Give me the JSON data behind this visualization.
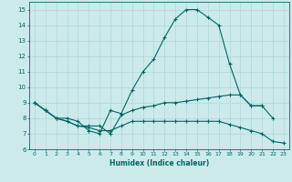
{
  "xlabel": "Humidex (Indice chaleur)",
  "background_color": "#cceaea",
  "grid_color": "#add8d8",
  "line_color": "#006666",
  "xlim": [
    -0.5,
    23.5
  ],
  "ylim": [
    6,
    15.5
  ],
  "yticks": [
    6,
    7,
    8,
    9,
    10,
    11,
    12,
    13,
    14,
    15
  ],
  "xticks": [
    0,
    1,
    2,
    3,
    4,
    5,
    6,
    7,
    8,
    9,
    10,
    11,
    12,
    13,
    14,
    15,
    16,
    17,
    18,
    19,
    20,
    21,
    22,
    23
  ],
  "lines": [
    {
      "x": [
        0,
        1,
        2,
        3,
        4,
        5,
        6,
        7,
        8,
        9,
        10,
        11,
        12,
        13,
        14,
        15,
        16,
        17,
        18,
        19,
        20,
        21,
        22
      ],
      "y": [
        9.0,
        8.5,
        8.0,
        8.0,
        7.8,
        7.2,
        7.0,
        8.5,
        8.3,
        9.8,
        11.0,
        11.8,
        13.2,
        14.4,
        15.0,
        15.0,
        14.5,
        14.0,
        11.5,
        9.5,
        8.8,
        8.8,
        8.0
      ]
    },
    {
      "x": [
        0,
        1,
        2,
        3,
        4,
        5,
        6,
        7,
        8,
        9,
        10,
        11,
        12,
        13,
        14,
        15,
        16,
        17,
        18,
        19,
        20,
        21
      ],
      "y": [
        9.0,
        8.5,
        8.0,
        7.8,
        7.5,
        7.5,
        7.5,
        7.0,
        8.2,
        8.5,
        8.7,
        8.8,
        9.0,
        9.0,
        9.1,
        9.2,
        9.3,
        9.4,
        9.5,
        9.5,
        8.8,
        8.8
      ]
    },
    {
      "x": [
        0,
        1,
        2,
        3,
        4,
        5,
        6,
        7,
        8,
        9,
        10,
        11,
        12,
        13,
        14,
        15,
        16,
        17,
        18,
        19,
        20,
        21,
        22,
        23
      ],
      "y": [
        9.0,
        8.5,
        8.0,
        7.8,
        7.5,
        7.4,
        7.2,
        7.2,
        7.5,
        7.8,
        7.8,
        7.8,
        7.8,
        7.8,
        7.8,
        7.8,
        7.8,
        7.8,
        7.6,
        7.4,
        7.2,
        7.0,
        6.5,
        6.4
      ]
    }
  ]
}
